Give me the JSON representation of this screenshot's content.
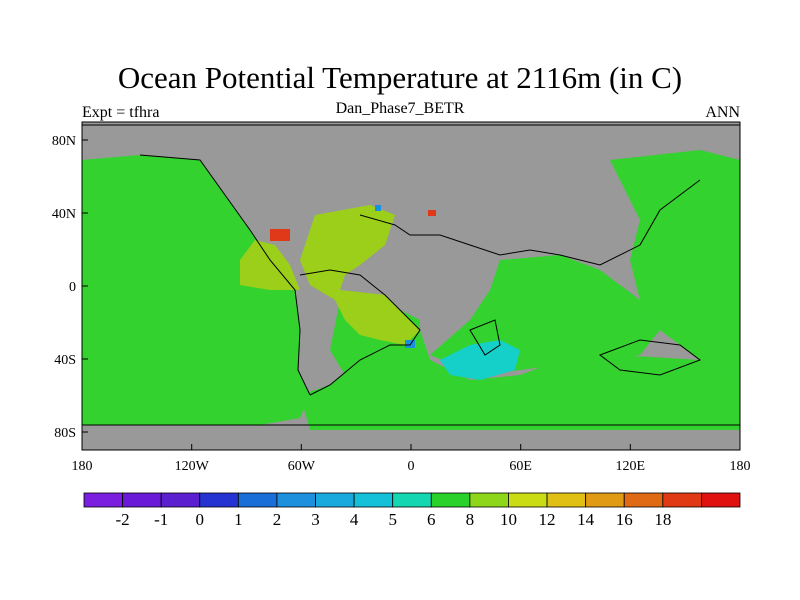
{
  "header": {
    "title": "Ocean Potential Temperature at 2116m (in C)",
    "subtitle": "Dan_Phase7_BETR",
    "left_label": "Expt = tfhra",
    "right_label": "ANN"
  },
  "axes": {
    "x_ticks": [
      "180",
      "120W",
      "60W",
      "0",
      "60E",
      "120E",
      "180"
    ],
    "y_ticks": [
      "80N",
      "40N",
      "0",
      "40S",
      "80S"
    ]
  },
  "colorbar": {
    "colors": [
      "#7a1fe0",
      "#6a19d8",
      "#5a20d0",
      "#2433d1",
      "#1a6ed8",
      "#1c8fdd",
      "#1aa9dc",
      "#14c1d8",
      "#14d6b0",
      "#2ad12a",
      "#8ed61a",
      "#c9dc14",
      "#e0c014",
      "#e09a14",
      "#e06a14",
      "#e03a14",
      "#e01010"
    ],
    "labels": [
      "-2",
      "-1",
      "0",
      "1",
      "2",
      "3",
      "4",
      "5",
      "6",
      "8",
      "10",
      "12",
      "14",
      "16",
      "18"
    ]
  },
  "map_colors": {
    "land": "#999999",
    "ocean_main": "#33d22e",
    "warm_atlantic": "#9ccf1a",
    "warm_med": "#e0391a",
    "cool_south": "#14d0c8",
    "cool_blue": "#1a90e0"
  }
}
